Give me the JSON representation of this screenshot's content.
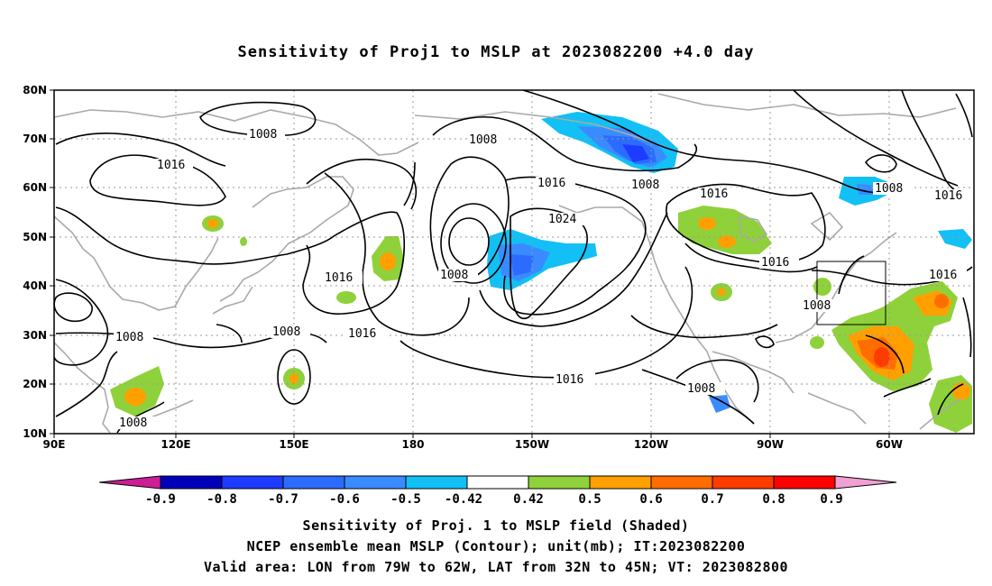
{
  "title": "Sensitivity of Proj1 to MSLP at 2023082200 +4.0 day",
  "lat_labels": [
    "80N",
    "70N",
    "60N",
    "50N",
    "40N",
    "30N",
    "20N",
    "10N"
  ],
  "lon_labels": [
    "90E",
    "120E",
    "150E",
    "180",
    "150W",
    "120W",
    "90W",
    "60W"
  ],
  "contour_labels": [
    "1008",
    "1016",
    "1008",
    "1016",
    "1024",
    "1008",
    "1016",
    "1008",
    "1016",
    "1008",
    "1016",
    "1008",
    "1016",
    "1016",
    "1008",
    "1016",
    "1008",
    "1008",
    "1008"
  ],
  "colorbar": {
    "labels": [
      "-0.9",
      "-0.8",
      "-0.7",
      "-0.6",
      "-0.5",
      "-0.42",
      "0.42",
      "0.5",
      "0.6",
      "0.7",
      "0.8",
      "0.9"
    ],
    "colors": [
      "#0000bb",
      "#1e3cff",
      "#2b6cff",
      "#3a8bff",
      "#12c0f5",
      "#ffffff",
      "#8fd13a",
      "#ffa000",
      "#ff6d00",
      "#ff3c00",
      "#ff0000"
    ],
    "end_colors": [
      "#cc1e96",
      "#f0a0d2"
    ]
  },
  "valid_area": {
    "lon": [
      -79,
      -62
    ],
    "lat": [
      32,
      45
    ]
  },
  "captions": [
    "Sensitivity of Proj. 1 to MSLP field (Shaded)",
    "NCEP ensemble mean MSLP (Contour); unit(mb); IT:2023082200",
    "Valid area: LON from 79W to 62W, LAT from 32N to 45N; VT: 2023082800"
  ]
}
